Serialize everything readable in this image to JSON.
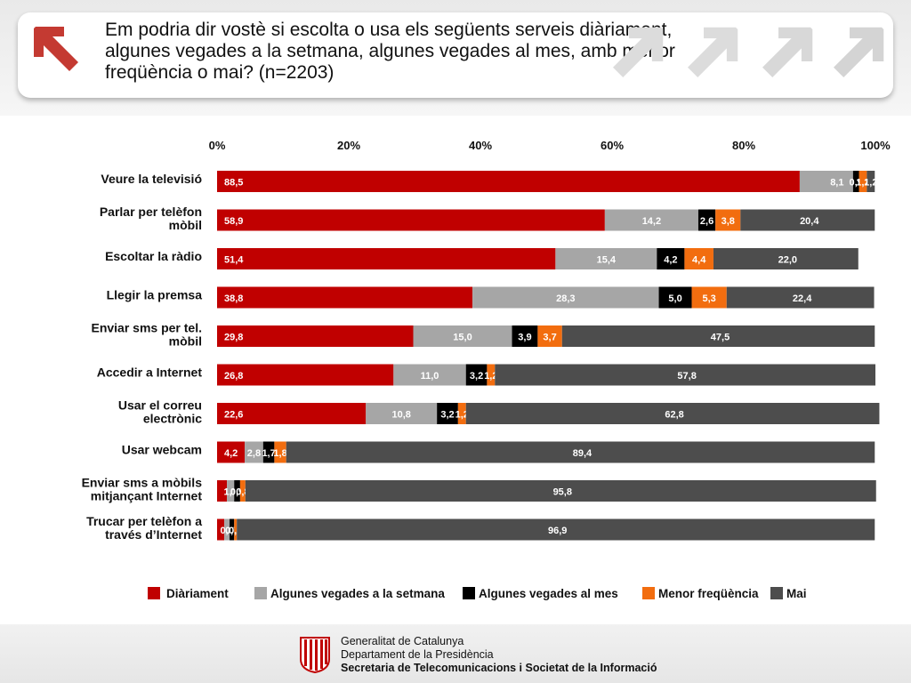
{
  "header": {
    "title": "Em podria dir vostè si escolta o usa els següents serveis diàriament, algunes vegades a la setmana, algunes vegades al mes, amb menor freqüència o mai? (n=2203)",
    "back_icon": "arrow-up-left-icon",
    "decor_icon": "arrow-up-right-icon"
  },
  "colors": {
    "accent": "#c00000",
    "diariament": "#c00000",
    "setmana": "#a6a6a6",
    "mes": "#000000",
    "menor": "#f26d0f",
    "mai": "#4d4d4d"
  },
  "chart_data": {
    "type": "bar",
    "orientation": "horizontal",
    "stacked": true,
    "percent_axis_ticks": [
      "0%",
      "20%",
      "40%",
      "60%",
      "80%",
      "100%"
    ],
    "xlim": [
      0,
      100
    ],
    "axis_position": "top",
    "grid": false,
    "legend_position": "bottom",
    "categories": [
      "Veure la televisió",
      "Parlar per telèfon mòbil",
      "Escoltar la ràdio",
      "Llegir la premsa",
      "Enviar sms per tel. mòbil",
      "Accedir a Internet",
      "Usar el correu electrònic",
      "Usar webcam",
      "Enviar sms a mòbils mitjançant Internet",
      "Trucar per telèfon a través d’Internet"
    ],
    "series": [
      {
        "name": "Diàriament",
        "color": "#c00000",
        "values": [
          88.5,
          58.9,
          51.4,
          38.8,
          29.8,
          26.8,
          22.6,
          4.2,
          1.5,
          1.1
        ]
      },
      {
        "name": "Algunes  vegades a la setmana",
        "color": "#a6a6a6",
        "values": [
          8.1,
          14.2,
          15.4,
          28.3,
          15.0,
          11.0,
          10.8,
          2.8,
          1.1,
          0.8
        ]
      },
      {
        "name": "Algunes vegades al mes",
        "color": "#000000",
        "values": [
          0.9,
          2.6,
          4.2,
          5.0,
          3.9,
          3.2,
          3.2,
          1.7,
          0.9,
          0.7
        ]
      },
      {
        "name": "Menor freqüència",
        "color": "#f26d0f",
        "values": [
          1.2,
          3.8,
          4.4,
          5.3,
          3.7,
          1.2,
          1.2,
          1.8,
          0.8,
          0.4
        ]
      },
      {
        "name": "Mai",
        "color": "#4d4d4d",
        "values": [
          1.2,
          20.4,
          22.0,
          22.4,
          47.5,
          57.8,
          62.8,
          89.4,
          95.8,
          96.9
        ]
      }
    ],
    "data_labels": [
      [
        "88,5",
        "8,1",
        "0,9",
        "1,2",
        "1,2"
      ],
      [
        "58,9",
        "14,2",
        "2,6",
        "3,8",
        "20,4"
      ],
      [
        "51,4",
        "15,4",
        "4,2",
        "4,4",
        "22,0"
      ],
      [
        "38,8",
        "28,3",
        "5,0",
        "5,3",
        "22,4"
      ],
      [
        "29,8",
        "15,0",
        "3,9",
        "3,7",
        "47,5"
      ],
      [
        "26,8",
        "11,0",
        "3,2",
        "1,2",
        "57,8"
      ],
      [
        "22,6",
        "10,8",
        "3,2",
        "1,2",
        "62,8"
      ],
      [
        "4,2",
        "2,8",
        "1,7",
        "1,8",
        "89,4"
      ],
      [
        "1,5",
        "1,1",
        "0,9",
        "0,8",
        "95,8"
      ],
      [
        "1,1",
        "0,8",
        "0,7",
        "0,4",
        "96,9"
      ]
    ]
  },
  "footer": {
    "org": "Generalitat de Catalunya",
    "dept": "Departament de la Presidència",
    "secretariat": "Secretaria de Telecomunicacions i Societat de la Informació",
    "seal_icon": "generalitat-seal-icon"
  }
}
